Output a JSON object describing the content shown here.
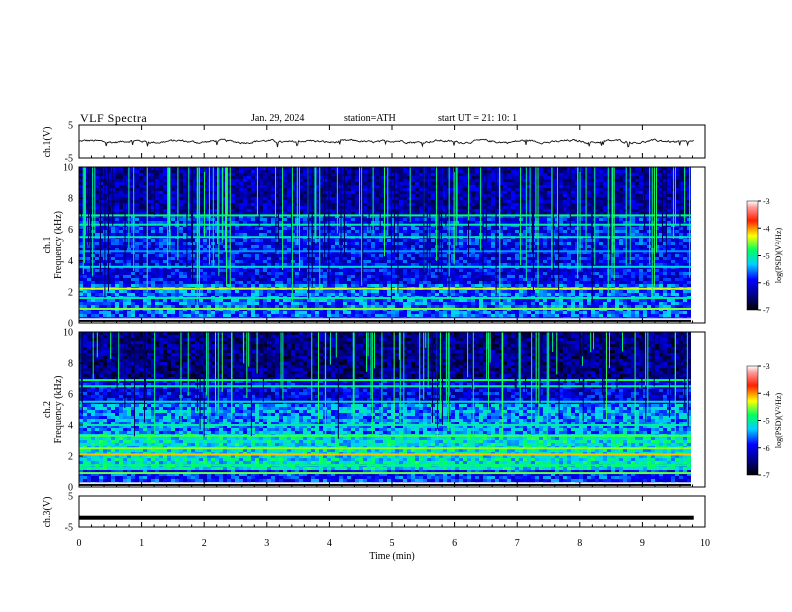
{
  "header": {
    "title": "VLF  Spectra",
    "date": "Jan. 29, 2024",
    "station": "station=ATH",
    "start": "start  UT  =   21: 10: 1"
  },
  "chart_data": [
    {
      "type": "line",
      "title": "",
      "ylabel": "ch.1(V)",
      "ylim": [
        -5,
        5
      ],
      "yticks": [
        "5",
        "-5"
      ],
      "x_range": [
        0,
        10
      ],
      "series": [
        {
          "values_description": "noise trace near 0 V",
          "mean": 0,
          "amplitude": 0.6
        }
      ]
    },
    {
      "type": "heatmap",
      "ylabel": "ch.1\nFrequency (kHz)",
      "ylim": [
        0,
        10
      ],
      "yticks": [
        "0",
        "2",
        "4",
        "6",
        "8",
        "10"
      ],
      "x_range": [
        0,
        10
      ],
      "colorbar": {
        "label": "log(PSD)(V²/Hz)",
        "range": [
          -7,
          -3
        ],
        "ticks": [
          "-3",
          "-4",
          "-5",
          "-6",
          "-7"
        ]
      }
    },
    {
      "type": "heatmap",
      "ylabel": "ch.2\nFrequency (kHz)",
      "ylim": [
        0,
        10
      ],
      "yticks": [
        "0",
        "2",
        "4",
        "6",
        "8",
        "10"
      ],
      "x_range": [
        0,
        10
      ],
      "colorbar": {
        "label": "log(PSD)(V²/Hz)",
        "range": [
          -7,
          -3
        ],
        "ticks": [
          "-3",
          "-4",
          "-5",
          "-6",
          "-7"
        ]
      }
    },
    {
      "type": "line",
      "ylabel": "ch.3(V)",
      "ylim": [
        -5,
        5
      ],
      "yticks": [
        "5",
        "-5"
      ],
      "x_range": [
        0,
        10
      ],
      "xlabel": "Time  (min)",
      "xticks": [
        "0",
        "1",
        "2",
        "3",
        "4",
        "5",
        "6",
        "7",
        "8",
        "9",
        "10"
      ],
      "series": [
        {
          "values_description": "flat trace near -2 V",
          "mean": -2,
          "amplitude": 0.1
        }
      ]
    }
  ],
  "axes": {
    "ch1_label": "ch.1(V)",
    "spec1_label_a": "ch.1",
    "spec1_label_b": "Frequency  (kHz)",
    "spec2_label_a": "ch.2",
    "spec2_label_b": "Frequency  (kHz)",
    "ch3_label": "ch.3(V)",
    "xlabel": "Time  (min)",
    "colorbar_label": "log(PSD)(V²/Hz)"
  }
}
